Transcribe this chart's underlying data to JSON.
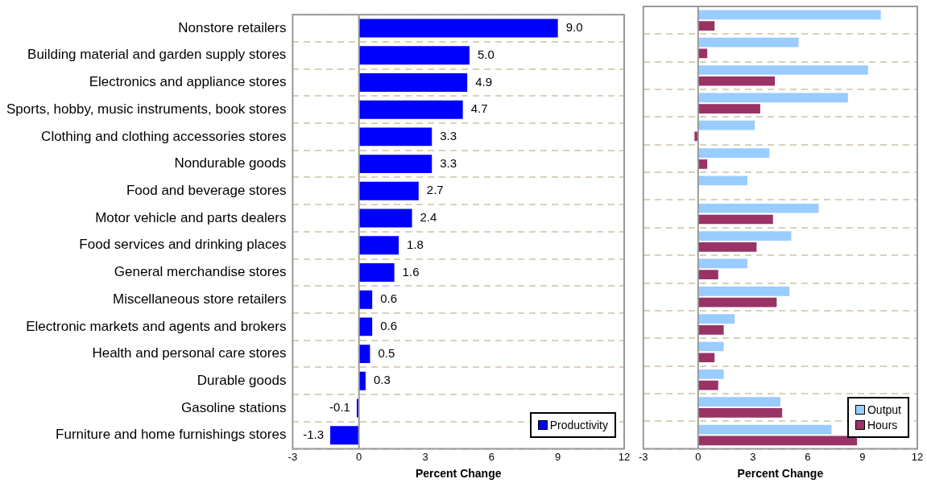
{
  "chart_data": [
    {
      "type": "bar",
      "orientation": "horizontal",
      "xlabel": "Percent Change",
      "categories": [
        "Nonstore retailers",
        "Building material and garden supply stores",
        "Electronics and appliance stores",
        "Sports, hobby, music instruments, book stores",
        "Clothing and clothing accessories stores",
        "Nondurable goods",
        "Food and beverage stores",
        "Motor vehicle and parts dealers",
        "Food services and drinking places",
        "General merchandise stores",
        "Miscellaneous store retailers",
        "Electronic markets and agents and brokers",
        "Health and personal care stores",
        "Durable goods",
        "Gasoline stations",
        "Furniture and home furnishings stores"
      ],
      "series": [
        {
          "name": "Productivity",
          "color": "#0000ff",
          "values": [
            9.0,
            5.0,
            4.9,
            4.7,
            3.3,
            3.3,
            2.7,
            2.4,
            1.8,
            1.6,
            0.6,
            0.6,
            0.5,
            0.3,
            -0.1,
            -1.3
          ],
          "value_labels": [
            "9.0",
            "5.0",
            "4.9",
            "4.7",
            "3.3",
            "3.3",
            "2.7",
            "2.4",
            "1.8",
            "1.6",
            "0.6",
            "0.6",
            "0.5",
            "0.3",
            "-0.1",
            "-1.3"
          ]
        }
      ],
      "xlim": [
        -3,
        12
      ],
      "xticks": [
        -3,
        0,
        3,
        6,
        9,
        12
      ],
      "grid": "y",
      "legend": "bottom right"
    },
    {
      "type": "bar",
      "orientation": "horizontal",
      "xlabel": "Percent Change",
      "categories": [
        null,
        null,
        null,
        null,
        null,
        null,
        null,
        null,
        null,
        null,
        null,
        null,
        null,
        null,
        null,
        null
      ],
      "series": [
        {
          "name": "Output",
          "color": "#99ccff",
          "values": [
            10.0,
            5.5,
            9.3,
            8.2,
            3.1,
            3.9,
            2.7,
            6.6,
            5.1,
            2.7,
            5.0,
            2.0,
            1.4,
            1.4,
            4.5,
            7.3
          ]
        },
        {
          "name": "Hours",
          "color": "#993366",
          "values": [
            0.9,
            0.5,
            4.2,
            3.4,
            -0.2,
            0.5,
            0.0,
            4.1,
            3.2,
            1.1,
            4.3,
            1.4,
            0.9,
            1.1,
            4.6,
            8.7
          ]
        }
      ],
      "xlim": [
        -3,
        12
      ],
      "xticks": [
        -3,
        0,
        3,
        6,
        9,
        12
      ],
      "grid": "y",
      "legend": "bottom right",
      "tick_labels": "x"
    }
  ]
}
